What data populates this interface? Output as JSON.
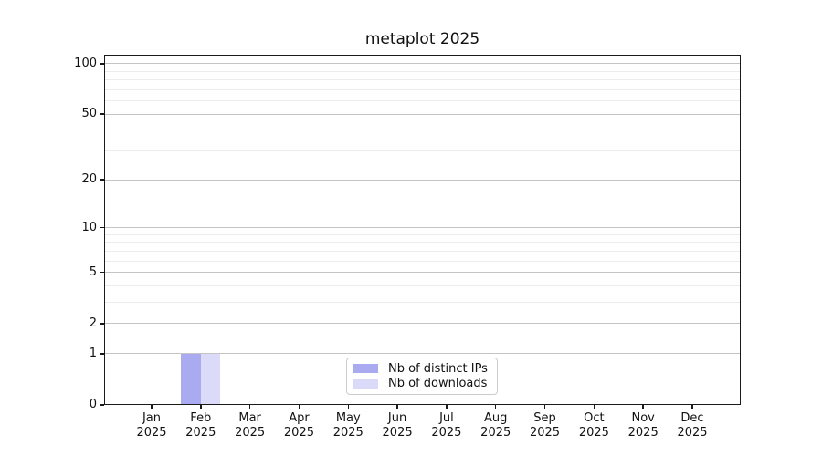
{
  "chart_data": {
    "type": "bar",
    "title": "metaplot 2025",
    "y_scale": "log1p",
    "grid": true,
    "legend_position": "lower center",
    "ylim": [
      0,
      113
    ],
    "y_ticks_major": [
      0,
      1,
      2,
      5,
      10,
      20,
      50,
      100
    ],
    "y_ticks_minor": [
      3,
      4,
      6,
      7,
      8,
      9,
      30,
      40,
      60,
      70,
      80,
      90
    ],
    "categories": [
      {
        "month": "Jan",
        "year": "2025"
      },
      {
        "month": "Feb",
        "year": "2025"
      },
      {
        "month": "Mar",
        "year": "2025"
      },
      {
        "month": "Apr",
        "year": "2025"
      },
      {
        "month": "May",
        "year": "2025"
      },
      {
        "month": "Jun",
        "year": "2025"
      },
      {
        "month": "Jul",
        "year": "2025"
      },
      {
        "month": "Aug",
        "year": "2025"
      },
      {
        "month": "Sep",
        "year": "2025"
      },
      {
        "month": "Oct",
        "year": "2025"
      },
      {
        "month": "Nov",
        "year": "2025"
      },
      {
        "month": "Dec",
        "year": "2025"
      }
    ],
    "series": [
      {
        "name": "Nb of distinct IPs",
        "color": "#aaaaf0",
        "values": [
          0,
          1,
          0,
          0,
          0,
          0,
          0,
          0,
          0,
          0,
          0,
          0
        ]
      },
      {
        "name": "Nb of downloads",
        "color": "#dbdaf8",
        "values": [
          0,
          1,
          0,
          0,
          0,
          0,
          0,
          0,
          0,
          0,
          0,
          0
        ]
      }
    ],
    "colors": {
      "axis": "#1a1a1a",
      "grid_major": "#c4c4c4",
      "grid_minor": "#ececec"
    }
  }
}
